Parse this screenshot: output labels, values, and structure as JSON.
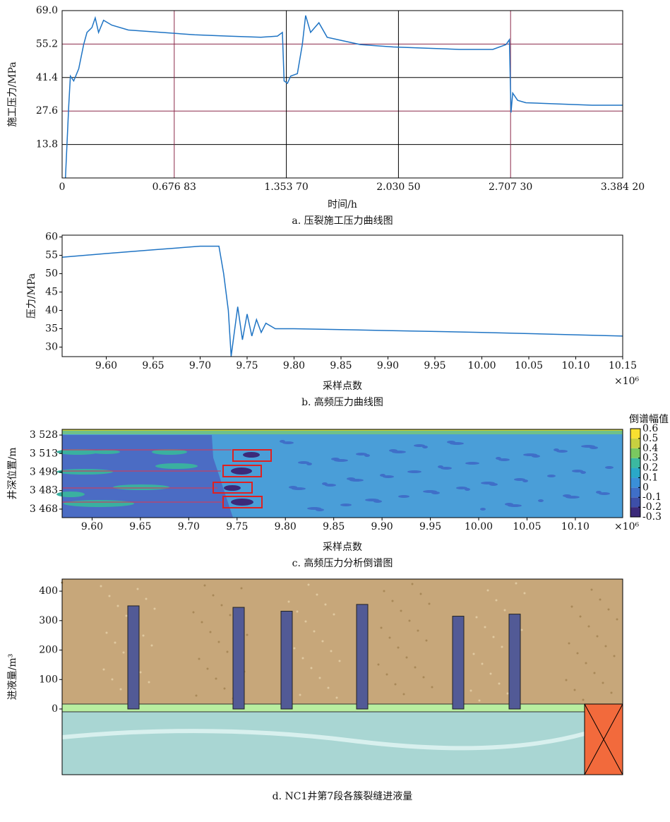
{
  "chart_data": [
    {
      "type": "line",
      "ylabel": "施工压力/MPa",
      "xlabel": "时间/h",
      "caption": "a. 压裂施工压力曲线图",
      "x": [
        0.02,
        0.04,
        0.05,
        0.07,
        0.1,
        0.13,
        0.15,
        0.18,
        0.2,
        0.22,
        0.25,
        0.3,
        0.4,
        0.6,
        0.8,
        1.0,
        1.2,
        1.3,
        1.33,
        1.34,
        1.36,
        1.38,
        1.42,
        1.45,
        1.47,
        1.5,
        1.55,
        1.6,
        1.8,
        2.0,
        2.2,
        2.4,
        2.6,
        2.68,
        2.7,
        2.71,
        2.72,
        2.75,
        2.8,
        3.0,
        3.2,
        3.384
      ],
      "values": [
        0,
        30,
        42,
        40,
        45,
        55,
        60,
        62,
        66,
        60,
        65,
        63,
        61,
        60,
        59,
        58.5,
        58,
        58.5,
        60,
        40,
        39,
        42,
        43,
        55,
        67,
        60,
        64,
        58,
        55,
        54,
        53.5,
        53,
        53,
        55,
        57,
        27,
        35,
        32,
        31,
        30.5,
        30,
        30
      ],
      "color": "#1f74c4",
      "xlim": [
        0,
        3.3842
      ],
      "xticks": [
        0,
        {
          "value": 0.67683,
          "label": "0.676 83"
        },
        {
          "value": 1.3537,
          "label": "1.353 70"
        },
        {
          "value": 2.0305,
          "label": "2.030 50"
        },
        {
          "value": 2.7073,
          "label": "2.707 30"
        },
        {
          "value": 3.3842,
          "label": "3.384 20"
        }
      ],
      "ylim": [
        0,
        69
      ],
      "yticks": [
        13.8,
        27.6,
        41.4,
        55.2,
        {
          "value": 69,
          "label": "69.0"
        }
      ],
      "grid": true,
      "grid_colors": [
        "#000000",
        "#8b2a4a"
      ]
    },
    {
      "type": "line",
      "ylabel": "压力/MPa",
      "xlabel": "采样点数",
      "caption": "b. 高频压力曲线图",
      "x_multiplier": "×10⁶",
      "x": [
        9.553,
        9.6,
        9.65,
        9.7,
        9.72,
        9.725,
        9.73,
        9.733,
        9.74,
        9.745,
        9.75,
        9.755,
        9.76,
        9.765,
        9.77,
        9.78,
        9.8,
        9.9,
        10.0,
        10.15
      ],
      "values": [
        54.5,
        55.5,
        56.5,
        57.5,
        57.5,
        50,
        40,
        27.5,
        41,
        32,
        39,
        33,
        37.5,
        34,
        36.5,
        35,
        35,
        34.5,
        34,
        33
      ],
      "color": "#1f74c4",
      "xlim": [
        9.553,
        10.15
      ],
      "xticks": [
        {
          "value": 9.6,
          "label": "9.60"
        },
        9.65,
        {
          "value": 9.7,
          "label": "9.70"
        },
        9.75,
        {
          "value": 9.8,
          "label": "9.80"
        },
        9.85,
        {
          "value": 9.9,
          "label": "9.90"
        },
        9.95,
        {
          "value": 10,
          "label": "10.00"
        },
        10.05,
        {
          "value": 10.1,
          "label": "10.10"
        },
        10.15
      ],
      "ylim": [
        27.4,
        60.5
      ],
      "yticks": [
        30,
        35,
        40,
        45,
        50,
        55,
        60
      ],
      "grid": false
    },
    {
      "type": "contour",
      "ylabel": "井深位置/m",
      "xlabel": "采样点数",
      "caption": "c. 高频压力分析倒谱图",
      "x_multiplier": "×10⁶",
      "xlim": [
        9.569,
        10.149
      ],
      "xticks": [
        {
          "value": 9.6,
          "label": "9.60"
        },
        9.65,
        {
          "value": 9.7,
          "label": "9.70"
        },
        9.75,
        {
          "value": 9.8,
          "label": "9.80"
        },
        9.85,
        {
          "value": 9.9,
          "label": "9.90"
        },
        9.95,
        {
          "value": 10,
          "label": "10.00"
        },
        10.05,
        {
          "value": 10.1,
          "label": "10.10"
        }
      ],
      "ylim": [
        3461.1,
        3532.6
      ],
      "yticks": [
        {
          "value": 3468,
          "label": "3 468"
        },
        {
          "value": 3483,
          "label": "3 483"
        },
        {
          "value": 3498,
          "label": "3 498"
        },
        {
          "value": 3513,
          "label": "3 513"
        },
        {
          "value": 3528,
          "label": "3 528"
        }
      ],
      "grid": false,
      "colorbar": {
        "title": "倒谱幅值",
        "lim": [
          -0.3,
          0.6
        ],
        "ticks": [
          -0.3,
          -0.2,
          -0.1,
          0,
          0.1,
          0.2,
          0.3,
          0.4,
          0.5,
          0.6
        ],
        "colors": [
          "#3b2a7a",
          "#3d4fa8",
          "#3f6fc8",
          "#3a8fd8",
          "#2aa8c8",
          "#3bb8a0",
          "#7ac860",
          "#c8d040",
          "#f8e030"
        ]
      }
    },
    {
      "type": "bar",
      "ylabel": "进液量/m³",
      "caption": "d. NC1井第7段各簇裂缝进液量",
      "categories": [
        null,
        null,
        null,
        null,
        null,
        null
      ],
      "values": [
        350,
        345,
        332,
        355,
        315,
        322
      ],
      "color": "#525a96",
      "ylim": [
        -223,
        441
      ],
      "yticks": [
        0,
        100,
        200,
        300,
        400
      ],
      "grid": false
    }
  ]
}
